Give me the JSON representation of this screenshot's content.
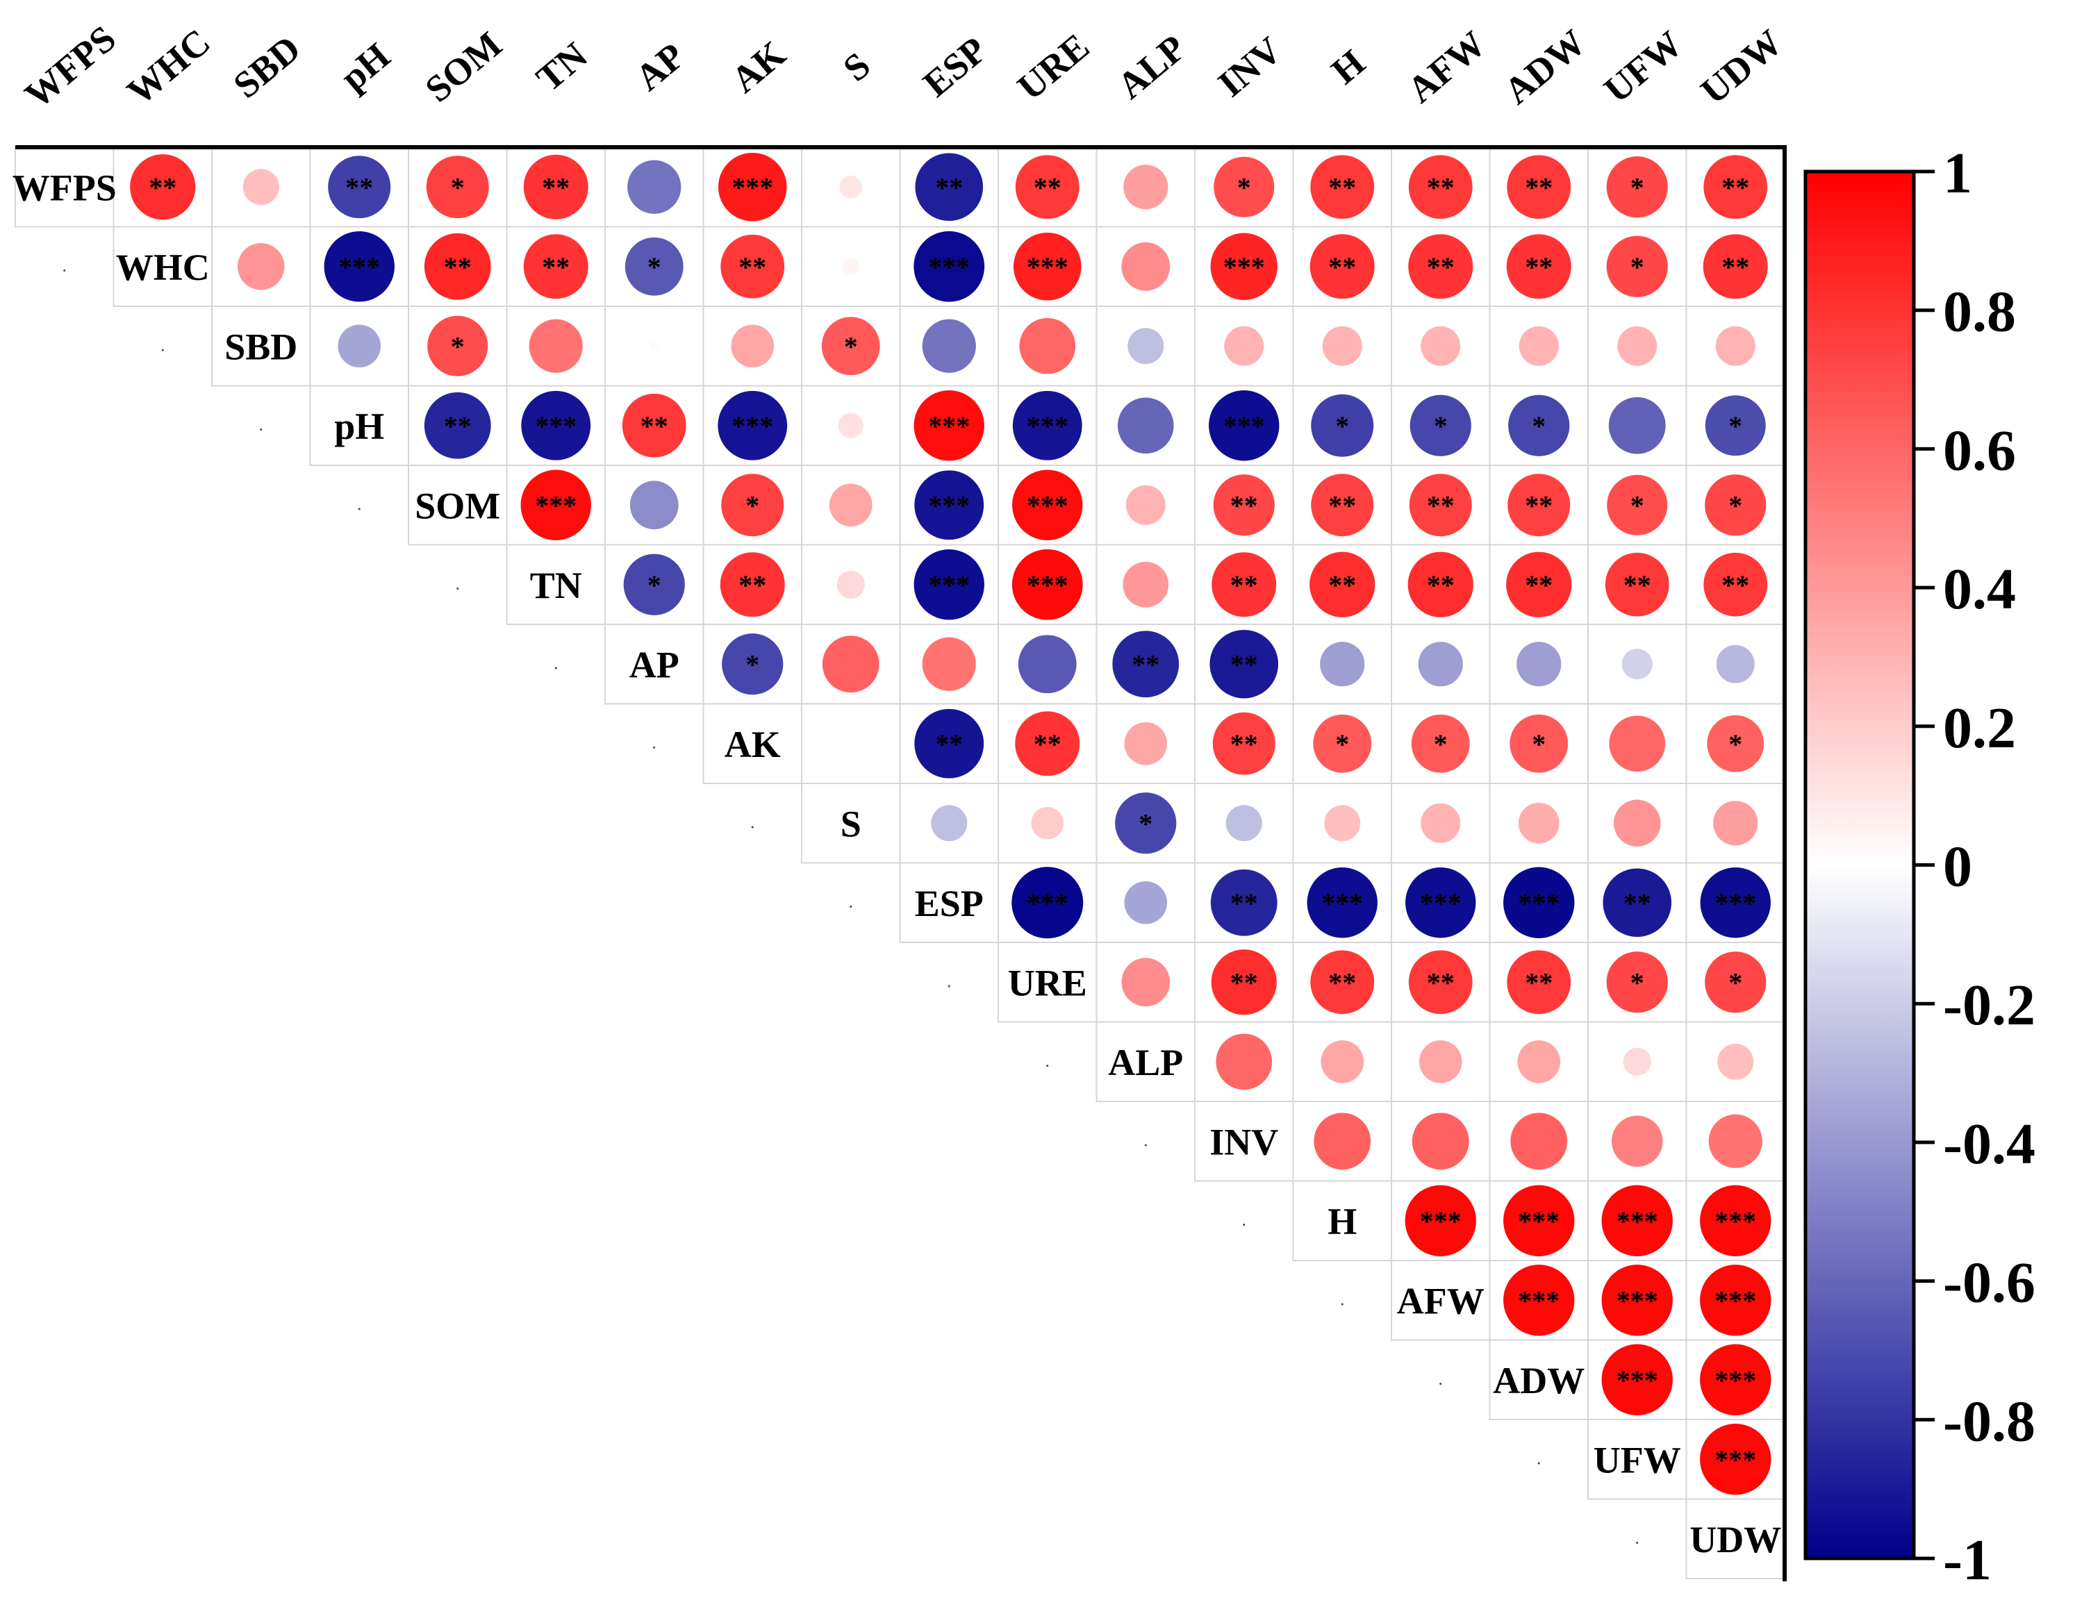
{
  "chart_data": {
    "type": "heatmap",
    "subtype": "correlation-circle-upper-triangle",
    "variables": [
      "WFPS",
      "WHC",
      "SBD",
      "pH",
      "SOM",
      "TN",
      "AP",
      "AK",
      "S",
      "ESP",
      "URE",
      "ALP",
      "INV",
      "H",
      "AFW",
      "ADW",
      "UFW",
      "UDW"
    ],
    "rows": [
      {
        "var": "WFPS",
        "values": [
          null,
          0.82,
          0.25,
          -0.75,
          0.75,
          0.8,
          -0.55,
          0.9,
          0.1,
          -0.88,
          0.78,
          0.38,
          0.7,
          0.78,
          0.78,
          0.78,
          0.72,
          0.78
        ],
        "stars": [
          "",
          "**",
          "",
          "**",
          "*",
          "**",
          "",
          "***",
          "",
          "**",
          "**",
          "",
          "*",
          "**",
          "**",
          "**",
          "*",
          "**"
        ]
      },
      {
        "var": "WHC",
        "values": [
          null,
          null,
          0.42,
          -0.95,
          0.85,
          0.8,
          -0.65,
          0.78,
          0.05,
          -0.96,
          0.88,
          0.45,
          0.86,
          0.8,
          0.8,
          0.8,
          0.72,
          0.8
        ],
        "stars": [
          "",
          "",
          "",
          "***",
          "**",
          "**",
          "*",
          "**",
          "",
          "***",
          "***",
          "",
          "***",
          "**",
          "**",
          "**",
          "*",
          "**"
        ]
      },
      {
        "var": "SBD",
        "values": [
          null,
          null,
          null,
          -0.35,
          0.7,
          0.55,
          0.02,
          0.35,
          0.65,
          -0.55,
          0.6,
          -0.25,
          0.3,
          0.3,
          0.3,
          0.3,
          0.3,
          0.3
        ],
        "stars": [
          "",
          "",
          "",
          "",
          "*",
          "",
          "",
          "",
          "*",
          "",
          "",
          "",
          "",
          "",
          "",
          "",
          "",
          ""
        ]
      },
      {
        "var": "pH",
        "values": [
          null,
          null,
          null,
          null,
          -0.85,
          -0.92,
          0.78,
          -0.92,
          0.12,
          0.95,
          -0.92,
          -0.6,
          -0.95,
          -0.75,
          -0.72,
          -0.72,
          -0.62,
          -0.7
        ],
        "stars": [
          "",
          "",
          "",
          "",
          "**",
          "***",
          "**",
          "***",
          "",
          "***",
          "***",
          "",
          "***",
          "*",
          "*",
          "*",
          "",
          "*"
        ]
      },
      {
        "var": "SOM",
        "values": [
          null,
          null,
          null,
          null,
          null,
          0.95,
          -0.45,
          0.75,
          0.35,
          -0.92,
          0.95,
          0.3,
          0.72,
          0.75,
          0.75,
          0.75,
          0.7,
          0.72
        ],
        "stars": [
          "",
          "",
          "",
          "",
          "",
          "***",
          "",
          "*",
          "",
          "***",
          "***",
          "",
          "**",
          "**",
          "**",
          "**",
          "*",
          "*"
        ]
      },
      {
        "var": "TN",
        "values": [
          null,
          null,
          null,
          null,
          null,
          null,
          -0.72,
          0.8,
          0.15,
          -0.95,
          0.96,
          0.4,
          0.8,
          0.82,
          0.82,
          0.82,
          0.78,
          0.78
        ],
        "stars": [
          "",
          "",
          "",
          "",
          "",
          "",
          "*",
          "**",
          "",
          "***",
          "***",
          "",
          "**",
          "**",
          "**",
          "**",
          "**",
          "**"
        ]
      },
      {
        "var": "AP",
        "values": [
          null,
          null,
          null,
          null,
          null,
          null,
          null,
          -0.72,
          0.62,
          0.55,
          -0.65,
          -0.85,
          -0.9,
          -0.38,
          -0.38,
          -0.38,
          -0.18,
          -0.28
        ],
        "stars": [
          "",
          "",
          "",
          "",
          "",
          "",
          "",
          "*",
          "",
          "",
          "",
          "**",
          "**",
          "",
          "",
          "",
          "",
          ""
        ]
      },
      {
        "var": "AK",
        "values": [
          null,
          null,
          null,
          null,
          null,
          null,
          null,
          null,
          0.0,
          -0.92,
          0.8,
          0.35,
          0.75,
          0.65,
          0.65,
          0.65,
          0.6,
          0.62
        ],
        "stars": [
          "",
          "",
          "",
          "",
          "",
          "",
          "",
          "",
          "",
          "**",
          "**",
          "",
          "**",
          "*",
          "*",
          "*",
          "",
          "*"
        ]
      },
      {
        "var": "S",
        "values": [
          null,
          null,
          null,
          null,
          null,
          null,
          null,
          null,
          null,
          -0.25,
          0.2,
          -0.72,
          -0.25,
          0.25,
          0.3,
          0.32,
          0.42,
          0.38
        ],
        "stars": [
          "",
          "",
          "",
          "",
          "",
          "",
          "",
          "",
          "",
          "",
          "",
          "*",
          "",
          "",
          "",
          "",
          "",
          ""
        ]
      },
      {
        "var": "ESP",
        "values": [
          null,
          null,
          null,
          null,
          null,
          null,
          null,
          null,
          null,
          null,
          -0.98,
          -0.35,
          -0.85,
          -0.95,
          -0.95,
          -0.97,
          -0.9,
          -0.95
        ],
        "stars": [
          "",
          "",
          "",
          "",
          "",
          "",
          "",
          "",
          "",
          "",
          "***",
          "",
          "**",
          "***",
          "***",
          "***",
          "**",
          "***"
        ]
      },
      {
        "var": "URE",
        "values": [
          null,
          null,
          null,
          null,
          null,
          null,
          null,
          null,
          null,
          null,
          null,
          0.45,
          0.82,
          0.78,
          0.78,
          0.78,
          0.72,
          0.72
        ],
        "stars": [
          "",
          "",
          "",
          "",
          "",
          "",
          "",
          "",
          "",
          "",
          "",
          "",
          "**",
          "**",
          "**",
          "**",
          "*",
          "*"
        ]
      },
      {
        "var": "ALP",
        "values": [
          null,
          null,
          null,
          null,
          null,
          null,
          null,
          null,
          null,
          null,
          null,
          null,
          0.6,
          0.35,
          0.35,
          0.35,
          0.15,
          0.25
        ],
        "stars": [
          "",
          "",
          "",
          "",
          "",
          "",
          "",
          "",
          "",
          "",
          "",
          "",
          "",
          "",
          "",
          "",
          "",
          ""
        ]
      },
      {
        "var": "INV",
        "values": [
          null,
          null,
          null,
          null,
          null,
          null,
          null,
          null,
          null,
          null,
          null,
          null,
          null,
          0.62,
          0.62,
          0.62,
          0.5,
          0.55
        ],
        "stars": [
          "",
          "",
          "",
          "",
          "",
          "",
          "",
          "",
          "",
          "",
          "",
          "",
          "",
          "",
          "",
          "",
          "",
          ""
        ]
      },
      {
        "var": "H",
        "values": [
          null,
          null,
          null,
          null,
          null,
          null,
          null,
          null,
          null,
          null,
          null,
          null,
          null,
          null,
          0.97,
          0.97,
          0.97,
          0.97
        ],
        "stars": [
          "",
          "",
          "",
          "",
          "",
          "",
          "",
          "",
          "",
          "",
          "",
          "",
          "",
          "",
          "***",
          "***",
          "***",
          "***"
        ]
      },
      {
        "var": "AFW",
        "values": [
          null,
          null,
          null,
          null,
          null,
          null,
          null,
          null,
          null,
          null,
          null,
          null,
          null,
          null,
          null,
          0.97,
          0.97,
          0.97
        ],
        "stars": [
          "",
          "",
          "",
          "",
          "",
          "",
          "",
          "",
          "",
          "",
          "",
          "",
          "",
          "",
          "",
          "***",
          "***",
          "***"
        ]
      },
      {
        "var": "ADW",
        "values": [
          null,
          null,
          null,
          null,
          null,
          null,
          null,
          null,
          null,
          null,
          null,
          null,
          null,
          null,
          null,
          null,
          0.97,
          0.97
        ],
        "stars": [
          "",
          "",
          "",
          "",
          "",
          "",
          "",
          "",
          "",
          "",
          "",
          "",
          "",
          "",
          "",
          "",
          "***",
          "***"
        ]
      },
      {
        "var": "UFW",
        "values": [
          null,
          null,
          null,
          null,
          null,
          null,
          null,
          null,
          null,
          null,
          null,
          null,
          null,
          null,
          null,
          null,
          null,
          0.97
        ],
        "stars": [
          "",
          "",
          "",
          "",
          "",
          "",
          "",
          "",
          "",
          "",
          "",
          "",
          "",
          "",
          "",
          "",
          "",
          "***"
        ]
      },
      {
        "var": "UDW",
        "values": [
          null,
          null,
          null,
          null,
          null,
          null,
          null,
          null,
          null,
          null,
          null,
          null,
          null,
          null,
          null,
          null,
          null,
          null
        ],
        "stars": [
          "",
          "",
          "",
          "",
          "",
          "",
          "",
          "",
          "",
          "",
          "",
          "",
          "",
          "",
          "",
          "",
          "",
          ""
        ]
      }
    ],
    "colorbar": {
      "range": [
        -1,
        1
      ],
      "ticks": [
        1,
        0.8,
        0.6,
        0.4,
        0.2,
        0,
        -0.2,
        -0.4,
        -0.6,
        -0.8,
        -1
      ],
      "tick_labels": [
        "1",
        "0.8",
        "0.6",
        "0.4",
        "0.2",
        "0",
        "-0.2",
        "-0.4",
        "-0.6",
        "-0.8",
        "-1"
      ],
      "colors": {
        "negative": "#00008b",
        "zero": "#ffffff",
        "positive": "#ff0000"
      }
    }
  }
}
